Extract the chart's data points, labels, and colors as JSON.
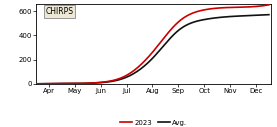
{
  "title": "CHIRPS",
  "months": [
    "Apr",
    "May",
    "Jun",
    "Jul",
    "Aug",
    "Sep",
    "Oct",
    "Nov",
    "Dec"
  ],
  "x_positions": [
    3,
    4,
    5,
    6,
    7,
    8,
    9,
    10,
    11
  ],
  "avg_values": [
    2,
    3,
    10,
    55,
    210,
    440,
    530,
    555,
    565
  ],
  "line_2023": [
    2,
    3,
    12,
    70,
    260,
    510,
    610,
    630,
    638
  ],
  "color_2023": "#cc0000",
  "color_avg": "#111111",
  "ylim": [
    0,
    660
  ],
  "yticks": [
    0,
    200,
    400,
    600
  ],
  "xlim_min": 2.5,
  "xlim_max": 11.6,
  "background": "#ffffff",
  "legend_label_2023": "2023",
  "legend_label_avg": "Avg.",
  "chirps_box_color": "#ede8d5"
}
